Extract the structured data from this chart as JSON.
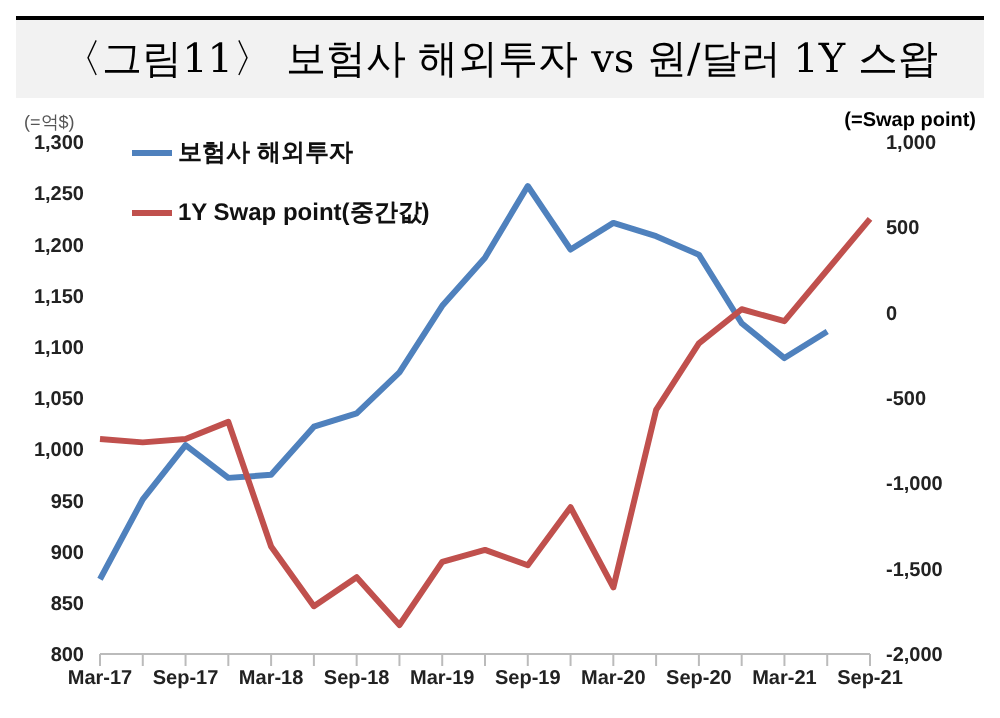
{
  "chart_data": {
    "type": "line",
    "title": "〈그림11〉 보험사 해외투자 vs 원/달러 1Y 스왑",
    "ylabel": "(=억$)",
    "y2label": "(=Swap point)",
    "categories": [
      "Mar-17",
      null,
      "Sep-17",
      null,
      "Mar-18",
      null,
      "Sep-18",
      null,
      "Mar-19",
      null,
      "Sep-19",
      null,
      "Mar-20",
      null,
      "Sep-20",
      null,
      "Mar-21",
      null,
      "Sep-21"
    ],
    "series": [
      {
        "name": "보험사 해외투자",
        "color": "#4f81bd",
        "values": [
          873,
          951,
          1004,
          972,
          975,
          1022,
          1035,
          1075,
          1140,
          1187,
          1257,
          1195,
          1221,
          1208,
          1190,
          1123,
          1089,
          1115,
          null
        ]
      },
      {
        "name": "1Y Swap point(중간값)",
        "color": "#c0504d",
        "axis": "y2",
        "values": [
          -740,
          -760,
          -740,
          -640,
          -1370,
          -1720,
          -1550,
          -1830,
          -1460,
          -1390,
          -1480,
          -1140,
          -1610,
          -570,
          -180,
          20,
          -50,
          250,
          550
        ]
      }
    ],
    "ylim": [
      800,
      1300
    ],
    "yticks": [
      800,
      850,
      900,
      950,
      {
        "value": 1000,
        "label": "1,000"
      },
      {
        "value": 1050,
        "label": "1,050"
      },
      {
        "value": 1100,
        "label": "1,100"
      },
      {
        "value": 1150,
        "label": "1,150"
      },
      {
        "value": 1200,
        "label": "1,200"
      },
      {
        "value": 1250,
        "label": "1,250"
      },
      {
        "value": 1300,
        "label": "1,300"
      }
    ],
    "y2lim": [
      -2000,
      1000
    ],
    "y2ticks": [
      {
        "value": -2000,
        "label": "-2,000"
      },
      {
        "value": -1500,
        "label": "-1,500"
      },
      {
        "value": -1000,
        "label": "-1,000"
      },
      -500,
      0,
      500,
      {
        "value": 1000,
        "label": "1,000"
      }
    ],
    "legend": "top left",
    "grid": false,
    "marker": "none",
    "line_style": "solid"
  }
}
